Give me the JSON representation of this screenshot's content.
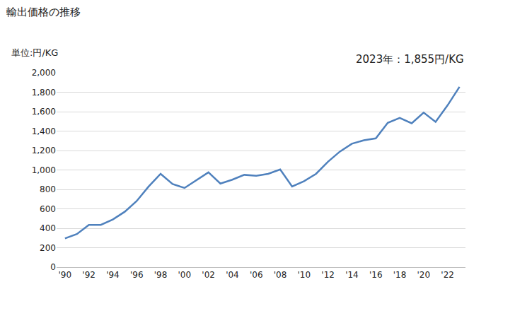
{
  "chart_data": {
    "type": "line",
    "title": "輸出価格の推移",
    "y_label": "単位:円/KG",
    "annotations": [
      "2023年：1,855円/KG"
    ],
    "categories": [
      "'90",
      null,
      "'92",
      null,
      "'94",
      null,
      "'96",
      null,
      "'98",
      null,
      "'00",
      null,
      "'02",
      null,
      "'04",
      null,
      "'06",
      null,
      "'08",
      null,
      "'10",
      null,
      "'12",
      null,
      "'14",
      null,
      "'16",
      null,
      "'18",
      null,
      "'20",
      null,
      "'22",
      null
    ],
    "values": [
      295,
      340,
      435,
      435,
      490,
      570,
      680,
      830,
      960,
      855,
      815,
      895,
      975,
      860,
      900,
      950,
      940,
      960,
      1005,
      830,
      885,
      960,
      1085,
      1190,
      1270,
      1305,
      1325,
      1485,
      1535,
      1480,
      1590,
      1495,
      1665,
      1855
    ],
    "color": "#4f81bd",
    "ylim": [
      0,
      2000
    ],
    "yticks": [
      0,
      200,
      400,
      600,
      800,
      {
        "value": 1000,
        "label": "1,000"
      },
      {
        "value": 1200,
        "label": "1,200"
      },
      {
        "value": 1400,
        "label": "1,400"
      },
      {
        "value": 1600,
        "label": "1,600"
      },
      {
        "value": 1800,
        "label": "1,800"
      },
      {
        "value": 2000,
        "label": "2,000"
      }
    ],
    "grid": true
  }
}
